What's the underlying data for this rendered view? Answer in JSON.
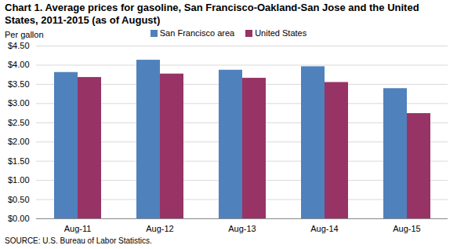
{
  "chart_data": {
    "type": "bar",
    "title": "Chart 1. Average prices for gasoline, San Francisco-Oakland-San Jose and the United States, 2011-2015 (as of August)",
    "ylabel": "Per gallon",
    "caption": "SOURCE: U.S. Bureau of Labor Statistics.",
    "categories": [
      "Aug-11",
      "Aug-12",
      "Aug-13",
      "Aug-14",
      "Aug-15"
    ],
    "series": [
      {
        "name": "San Francisco area",
        "color": "#4f81bd",
        "values": [
          3.81,
          4.13,
          3.87,
          3.96,
          3.39
        ]
      },
      {
        "name": "United States",
        "color": "#983366",
        "values": [
          3.68,
          3.77,
          3.66,
          3.55,
          2.74
        ]
      }
    ],
    "ylim": [
      0,
      4.5
    ],
    "yticks": [
      {
        "value": 0,
        "label": "$0.00"
      },
      {
        "value": 0.5,
        "label": "$0.50"
      },
      {
        "value": 1,
        "label": "$1.00"
      },
      {
        "value": 1.5,
        "label": "$1.50"
      },
      {
        "value": 2,
        "label": "$2.00"
      },
      {
        "value": 2.5,
        "label": "$2.50"
      },
      {
        "value": 3,
        "label": "$3.00"
      },
      {
        "value": 3.5,
        "label": "$3.50"
      },
      {
        "value": 4,
        "label": "$4.00"
      },
      {
        "value": 4.5,
        "label": "$4.50"
      }
    ],
    "grid": true,
    "legend": "top"
  }
}
